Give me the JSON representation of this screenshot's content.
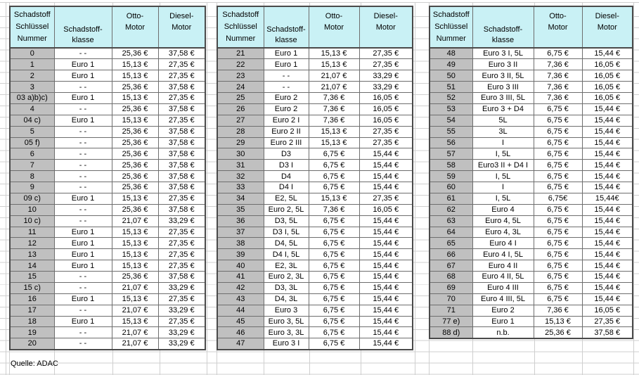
{
  "colors": {
    "header_bg": "#c9f1f5",
    "key_column_bg": "#c0c0c0",
    "gridline": "#cfcfcf",
    "table_border": "#4a4a4a"
  },
  "headers": {
    "key": "Schadstoff\nSchlüssel\nNummer",
    "class": "Schadstoff-\nklasse",
    "otto": "Otto-\nMotor",
    "diesel": "Diesel-\nMotor"
  },
  "footer": {
    "source": "Quelle: ADAC"
  },
  "groups": [
    {
      "rows": [
        {
          "n": "0",
          "k": "- -",
          "o": "25,36 €",
          "d": "37,58 €"
        },
        {
          "n": "1",
          "k": "Euro 1",
          "o": "15,13 €",
          "d": "27,35 €"
        },
        {
          "n": "2",
          "k": "Euro 1",
          "o": "15,13 €",
          "d": "27,35 €"
        },
        {
          "n": "3",
          "k": "- -",
          "o": "25,36 €",
          "d": "37,58 €"
        },
        {
          "n": "03 a)b)c)",
          "k": "Euro 1",
          "o": "15,13 €",
          "d": "27,35 €"
        },
        {
          "n": "4",
          "k": "- -",
          "o": "25,36 €",
          "d": "37,58 €"
        },
        {
          "n": "04 c)",
          "k": "Euro 1",
          "o": "15,13 €",
          "d": "27,35 €"
        },
        {
          "n": "5",
          "k": "- -",
          "o": "25,36 €",
          "d": "37,58 €"
        },
        {
          "n": "05 f)",
          "k": "- -",
          "o": "25,36 €",
          "d": "37,58 €"
        },
        {
          "n": "6",
          "k": "- -",
          "o": "25,36 €",
          "d": "37,58 €"
        },
        {
          "n": "7",
          "k": "- -",
          "o": "25,36 €",
          "d": "37,58 €"
        },
        {
          "n": "8",
          "k": "- -",
          "o": "25,36 €",
          "d": "37,58 €"
        },
        {
          "n": "9",
          "k": "- -",
          "o": "25,36 €",
          "d": "37,58 €"
        },
        {
          "n": "09 c)",
          "k": "Euro 1",
          "o": "15,13 €",
          "d": "27,35 €"
        },
        {
          "n": "10",
          "k": "- -",
          "o": "25,36 €",
          "d": "37,58 €"
        },
        {
          "n": "10 c)",
          "k": "- -",
          "o": "21,07 €",
          "d": "33,29 €"
        },
        {
          "n": "11",
          "k": "Euro 1",
          "o": "15,13 €",
          "d": "27,35 €"
        },
        {
          "n": "12",
          "k": "Euro 1",
          "o": "15,13 €",
          "d": "27,35 €"
        },
        {
          "n": "13",
          "k": "Euro 1",
          "o": "15,13 €",
          "d": "27,35 €"
        },
        {
          "n": "14",
          "k": "Euro 1",
          "o": "15,13 €",
          "d": "27,35 €"
        },
        {
          "n": "15",
          "k": "- -",
          "o": "25,36 €",
          "d": "37,58 €"
        },
        {
          "n": "15 c)",
          "k": "- -",
          "o": "21,07 €",
          "d": "33,29 €"
        },
        {
          "n": "16",
          "k": "Euro 1",
          "o": "15,13 €",
          "d": "27,35 €"
        },
        {
          "n": "17",
          "k": "- -",
          "o": "21,07 €",
          "d": "33,29 €"
        },
        {
          "n": "18",
          "k": "Euro 1",
          "o": "15,13 €",
          "d": "27,35 €"
        },
        {
          "n": "19",
          "k": "- -",
          "o": "21,07 €",
          "d": "33,29 €"
        },
        {
          "n": "20",
          "k": "- -",
          "o": "21,07 €",
          "d": "33,29 €"
        }
      ]
    },
    {
      "rows": [
        {
          "n": "21",
          "k": "Euro 1",
          "o": "15,13 €",
          "d": "27,35 €"
        },
        {
          "n": "22",
          "k": "Euro 1",
          "o": "15,13 €",
          "d": "27,35 €"
        },
        {
          "n": "23",
          "k": "- -",
          "o": "21,07 €",
          "d": "33,29 €"
        },
        {
          "n": "24",
          "k": "- -",
          "o": "21,07 €",
          "d": "33,29 €"
        },
        {
          "n": "25",
          "k": "Euro 2",
          "o": "7,36 €",
          "d": "16,05 €"
        },
        {
          "n": "26",
          "k": "Euro 2",
          "o": "7,36 €",
          "d": "16,05 €"
        },
        {
          "n": "27",
          "k": "Euro 2 I",
          "o": "7,36 €",
          "d": "16,05 €"
        },
        {
          "n": "28",
          "k": "Euro 2 II",
          "o": "15,13 €",
          "d": "27,35 €"
        },
        {
          "n": "29",
          "k": "Euro 2 III",
          "o": "15,13 €",
          "d": "27,35 €"
        },
        {
          "n": "30",
          "k": "D3",
          "o": "6,75 €",
          "d": "15,44 €"
        },
        {
          "n": "31",
          "k": "D3 I",
          "o": "6,75 €",
          "d": "15,44 €"
        },
        {
          "n": "32",
          "k": "D4",
          "o": "6,75 €",
          "d": "15,44 €"
        },
        {
          "n": "33",
          "k": "D4 I",
          "o": "6,75 €",
          "d": "15,44 €"
        },
        {
          "n": "34",
          "k": "E2, 5L",
          "o": "15,13 €",
          "d": "27,35 €"
        },
        {
          "n": "35",
          "k": "Euro 2, 5L",
          "o": "7,36 €",
          "d": "16,05 €"
        },
        {
          "n": "36",
          "k": "D3, 5L",
          "o": "6,75 €",
          "d": "15,44 €"
        },
        {
          "n": "37",
          "k": "D3 I, 5L",
          "o": "6,75 €",
          "d": "15,44 €"
        },
        {
          "n": "38",
          "k": "D4, 5L",
          "o": "6,75 €",
          "d": "15,44 €"
        },
        {
          "n": "39",
          "k": "D4 I, 5L",
          "o": "6,75 €",
          "d": "15,44 €"
        },
        {
          "n": "40",
          "k": "E2, 3L",
          "o": "6,75 €",
          "d": "15,44 €"
        },
        {
          "n": "41",
          "k": "Euro 2, 3L",
          "o": "6,75 €",
          "d": "15,44 €"
        },
        {
          "n": "42",
          "k": "D3, 3L",
          "o": "6,75 €",
          "d": "15,44 €"
        },
        {
          "n": "43",
          "k": "D4, 3L",
          "o": "6,75 €",
          "d": "15,44 €"
        },
        {
          "n": "44",
          "k": "Euro 3",
          "o": "6,75 €",
          "d": "15,44 €"
        },
        {
          "n": "45",
          "k": "Euro 3, 5L",
          "o": "6,75 €",
          "d": "15,44 €"
        },
        {
          "n": "46",
          "k": "Euro 3, 3L",
          "o": "6,75 €",
          "d": "15,44 €"
        },
        {
          "n": "47",
          "k": "Euro 3 I",
          "o": "6,75 €",
          "d": "15,44 €"
        }
      ]
    },
    {
      "rows": [
        {
          "n": "48",
          "k": "Euro 3 I, 5L",
          "o": "6,75 €",
          "d": "15,44 €"
        },
        {
          "n": "49",
          "k": "Euro 3 II",
          "o": "7,36 €",
          "d": "16,05 €"
        },
        {
          "n": "50",
          "k": "Euro 3 II, 5L",
          "o": "7,36 €",
          "d": "16,05 €"
        },
        {
          "n": "51",
          "k": "Euro 3 III",
          "o": "7,36 €",
          "d": "16,05 €"
        },
        {
          "n": "52",
          "k": "Euro 3 III, 5L",
          "o": "7,36 €",
          "d": "16,05 €"
        },
        {
          "n": "53",
          "k": "Euro 3 + D4",
          "o": "6,75 €",
          "d": "15,44 €"
        },
        {
          "n": "54",
          "k": "5L",
          "o": "6,75 €",
          "d": "15,44 €"
        },
        {
          "n": "55",
          "k": "3L",
          "o": "6,75 €",
          "d": "15,44 €"
        },
        {
          "n": "56",
          "k": "I",
          "o": "6,75 €",
          "d": "15,44 €"
        },
        {
          "n": "57",
          "k": "I, 5L",
          "o": "6,75 €",
          "d": "15,44 €"
        },
        {
          "n": "58",
          "k": "Euro3 II + D4 I",
          "o": "6,75 €",
          "d": "15,44 €"
        },
        {
          "n": "59",
          "k": "I, 5L",
          "o": "6,75 €",
          "d": "15,44 €"
        },
        {
          "n": "60",
          "k": "I",
          "o": "6,75 €",
          "d": "15,44 €"
        },
        {
          "n": "61",
          "k": "I, 5L",
          "o": "6,75€",
          "d": "15,44€"
        },
        {
          "n": "62",
          "k": "Euro 4",
          "o": "6,75 €",
          "d": "15,44 €"
        },
        {
          "n": "63",
          "k": "Euro 4, 5L",
          "o": "6,75 €",
          "d": "15,44 €"
        },
        {
          "n": "64",
          "k": "Euro 4, 3L",
          "o": "6,75 €",
          "d": "15,44 €"
        },
        {
          "n": "65",
          "k": "Euro 4 I",
          "o": "6,75 €",
          "d": "15,44 €"
        },
        {
          "n": "66",
          "k": "Euro 4 I, 5L",
          "o": "6,75 €",
          "d": "15,44 €"
        },
        {
          "n": "67",
          "k": "Euro 4 II",
          "o": "6,75 €",
          "d": "15,44 €"
        },
        {
          "n": "68",
          "k": "Euro 4 II, 5L",
          "o": "6,75 €",
          "d": "15,44 €"
        },
        {
          "n": "69",
          "k": "Euro 4 III",
          "o": "6,75 €",
          "d": "15,44 €"
        },
        {
          "n": "70",
          "k": "Euro 4 III, 5L",
          "o": "6,75 €",
          "d": "15,44 €"
        },
        {
          "n": "71",
          "k": "Euro 2",
          "o": "7,36 €",
          "d": "16,05 €"
        },
        {
          "n": "77 e)",
          "k": "Euro 1",
          "o": "15,13 €",
          "d": "27,35 €"
        },
        {
          "n": "88 d)",
          "k": "n.b.",
          "o": "25,36 €",
          "d": "37,58 €"
        }
      ]
    }
  ]
}
